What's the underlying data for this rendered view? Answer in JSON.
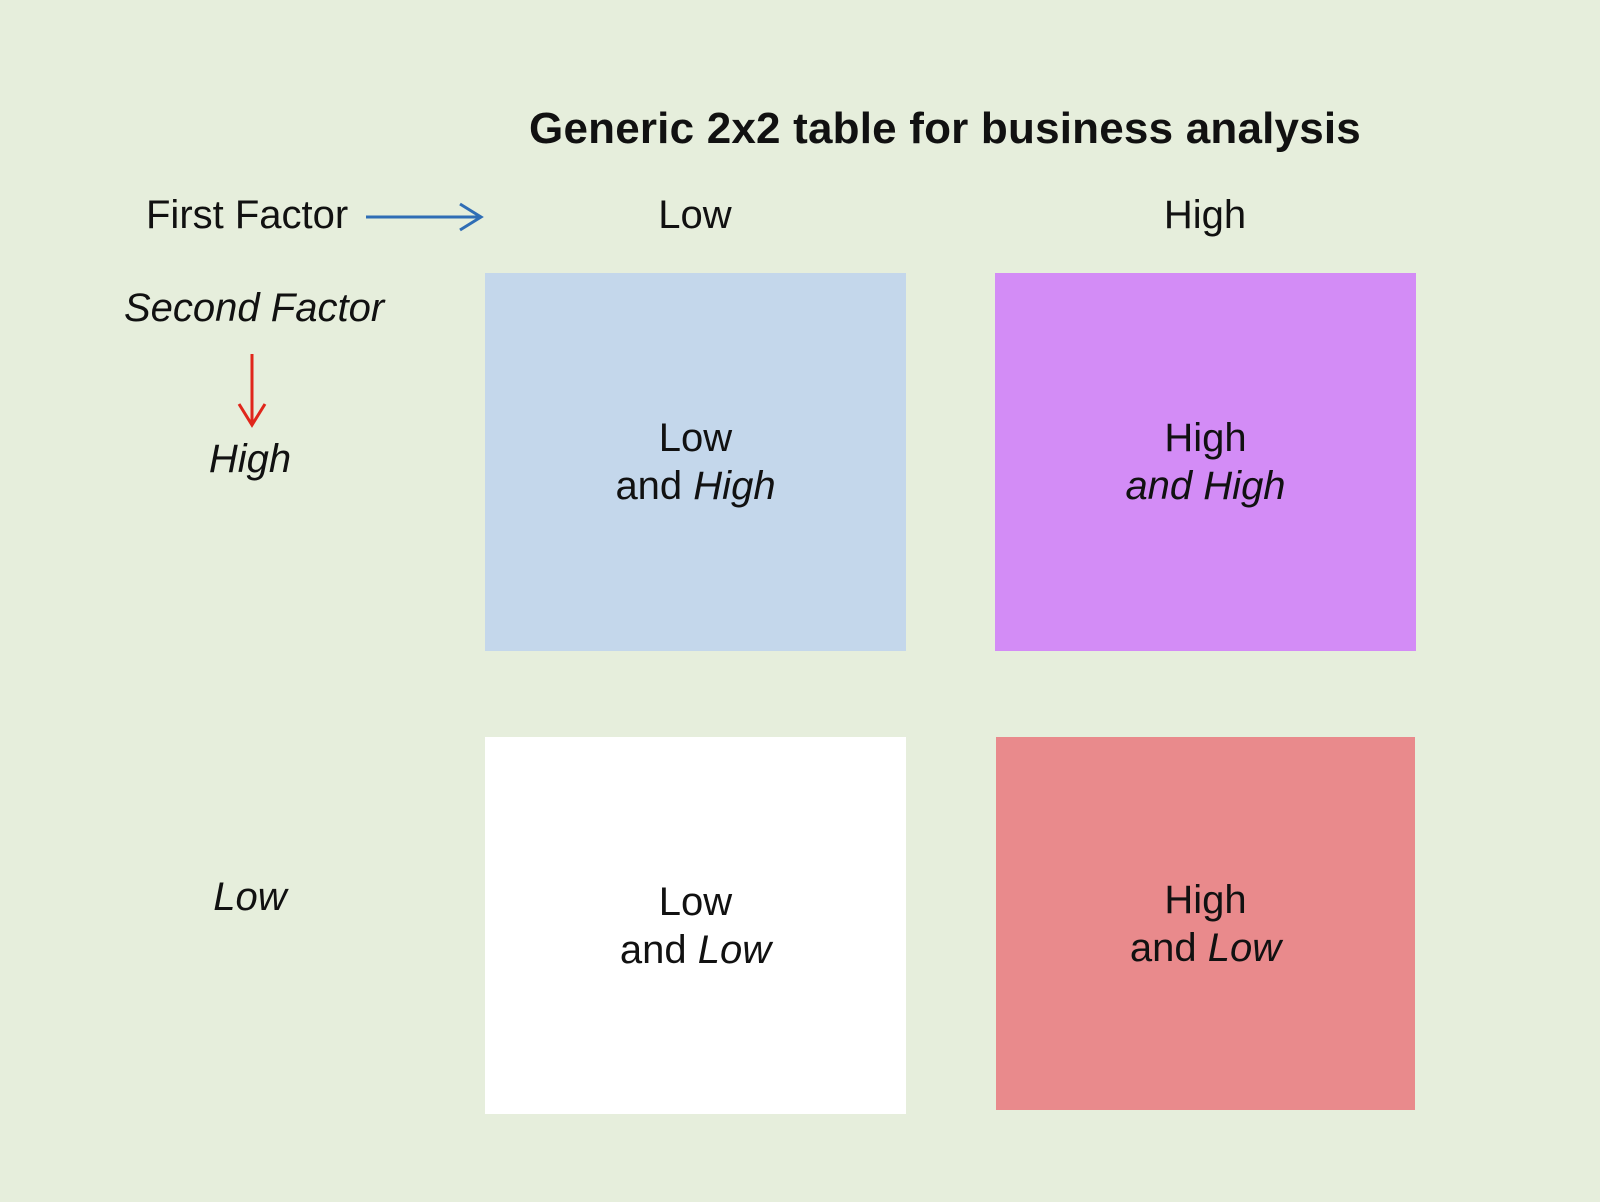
{
  "title": "Generic 2x2 table for business analysis",
  "first_factor": {
    "label": "First Factor",
    "arrow_color": "#2f6db5",
    "columns": [
      "Low",
      "High"
    ]
  },
  "second_factor": {
    "label": "Second Factor",
    "arrow_color": "#e0261b",
    "rows": [
      "High",
      "Low"
    ]
  },
  "cells": {
    "low_high": {
      "line1": "Low",
      "line2_prefix": "and ",
      "line2_italic": "High",
      "color": "#c4d7eb"
    },
    "high_high": {
      "line1": "High",
      "line2_prefix": "",
      "line2_italic": "and High",
      "color": "#d38cf6"
    },
    "low_low": {
      "line1": "Low",
      "line2_prefix": "and ",
      "line2_italic": "Low",
      "color": "#ffffff"
    },
    "high_low": {
      "line1": "High",
      "line2_prefix": "and ",
      "line2_italic": "Low",
      "color": "#e98a8c"
    }
  }
}
